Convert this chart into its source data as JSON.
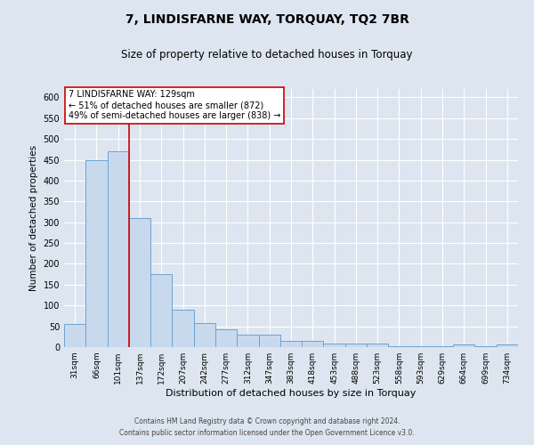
{
  "title": "7, LINDISFARNE WAY, TORQUAY, TQ2 7BR",
  "subtitle": "Size of property relative to detached houses in Torquay",
  "xlabel": "Distribution of detached houses by size in Torquay",
  "ylabel": "Number of detached properties",
  "bin_labels": [
    "31sqm",
    "66sqm",
    "101sqm",
    "137sqm",
    "172sqm",
    "207sqm",
    "242sqm",
    "277sqm",
    "312sqm",
    "347sqm",
    "383sqm",
    "418sqm",
    "453sqm",
    "488sqm",
    "523sqm",
    "558sqm",
    "593sqm",
    "629sqm",
    "664sqm",
    "699sqm",
    "734sqm"
  ],
  "bar_values": [
    55,
    450,
    470,
    310,
    175,
    90,
    58,
    42,
    30,
    30,
    15,
    15,
    8,
    8,
    8,
    2,
    2,
    2,
    6,
    2,
    6
  ],
  "bar_color": "#c9d9ed",
  "bar_edge_color": "#6ba3d0",
  "vline_x": 3,
  "vline_color": "#cc0000",
  "ylim": [
    0,
    620
  ],
  "yticks": [
    0,
    50,
    100,
    150,
    200,
    250,
    300,
    350,
    400,
    450,
    500,
    550,
    600
  ],
  "annotation_line1": "7 LINDISFARNE WAY: 129sqm",
  "annotation_line2": "← 51% of detached houses are smaller (872)",
  "annotation_line3": "49% of semi-detached houses are larger (838) →",
  "footnote1": "Contains HM Land Registry data © Crown copyright and database right 2024.",
  "footnote2": "Contains public sector information licensed under the Open Government Licence v3.0.",
  "background_color": "#dde6f0",
  "plot_background_color": "#dde6f0",
  "grid_color": "#ffffff",
  "title_fontsize": 10,
  "subtitle_fontsize": 8.5,
  "ylabel_fontsize": 7.5,
  "xlabel_fontsize": 8,
  "ytick_fontsize": 7,
  "xtick_fontsize": 6.5
}
